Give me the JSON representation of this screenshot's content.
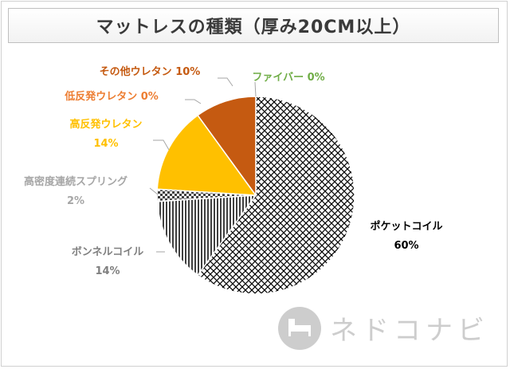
{
  "chart_data": {
    "type": "pie",
    "title": "マットレスの種類（厚み20CM以上）",
    "slices": [
      {
        "label": "ポケットコイル",
        "value": 60,
        "display": "60%",
        "color": "#000000",
        "pattern": "hatch-cross"
      },
      {
        "label": "ボンネルコイル",
        "value": 14,
        "display": "14%",
        "color": "#404040",
        "pattern": "vertical-lines"
      },
      {
        "label": "高密度連続スプリング",
        "value": 2,
        "display": "2%",
        "color": "#404040",
        "pattern": "checker"
      },
      {
        "label": "高反発ウレタン",
        "value": 14,
        "display": "14%",
        "color": "#ffc000",
        "pattern": "solid"
      },
      {
        "label": "低反発ウレタン",
        "value": 0,
        "display": "0%",
        "color": "#ed7d31",
        "pattern": "solid"
      },
      {
        "label": "その他ウレタン",
        "value": 10,
        "display": "10%",
        "color": "#c55a11",
        "pattern": "solid"
      },
      {
        "label": "ファイバー",
        "value": 0,
        "display": "0%",
        "color": "#70ad47",
        "pattern": "solid"
      }
    ],
    "label_colors": {
      "ポケットコイル": "#000000",
      "ボンネルコイル": "#7f7f7f",
      "高密度連続スプリング": "#a6a6a6",
      "高反発ウレタン": "#ffc000",
      "低反発ウレタン": "#ed7d31",
      "その他ウレタン": "#c55a11",
      "ファイバー": "#70ad47"
    }
  },
  "watermark": {
    "text": "ネドコナビ",
    "icon": "bed-icon"
  }
}
